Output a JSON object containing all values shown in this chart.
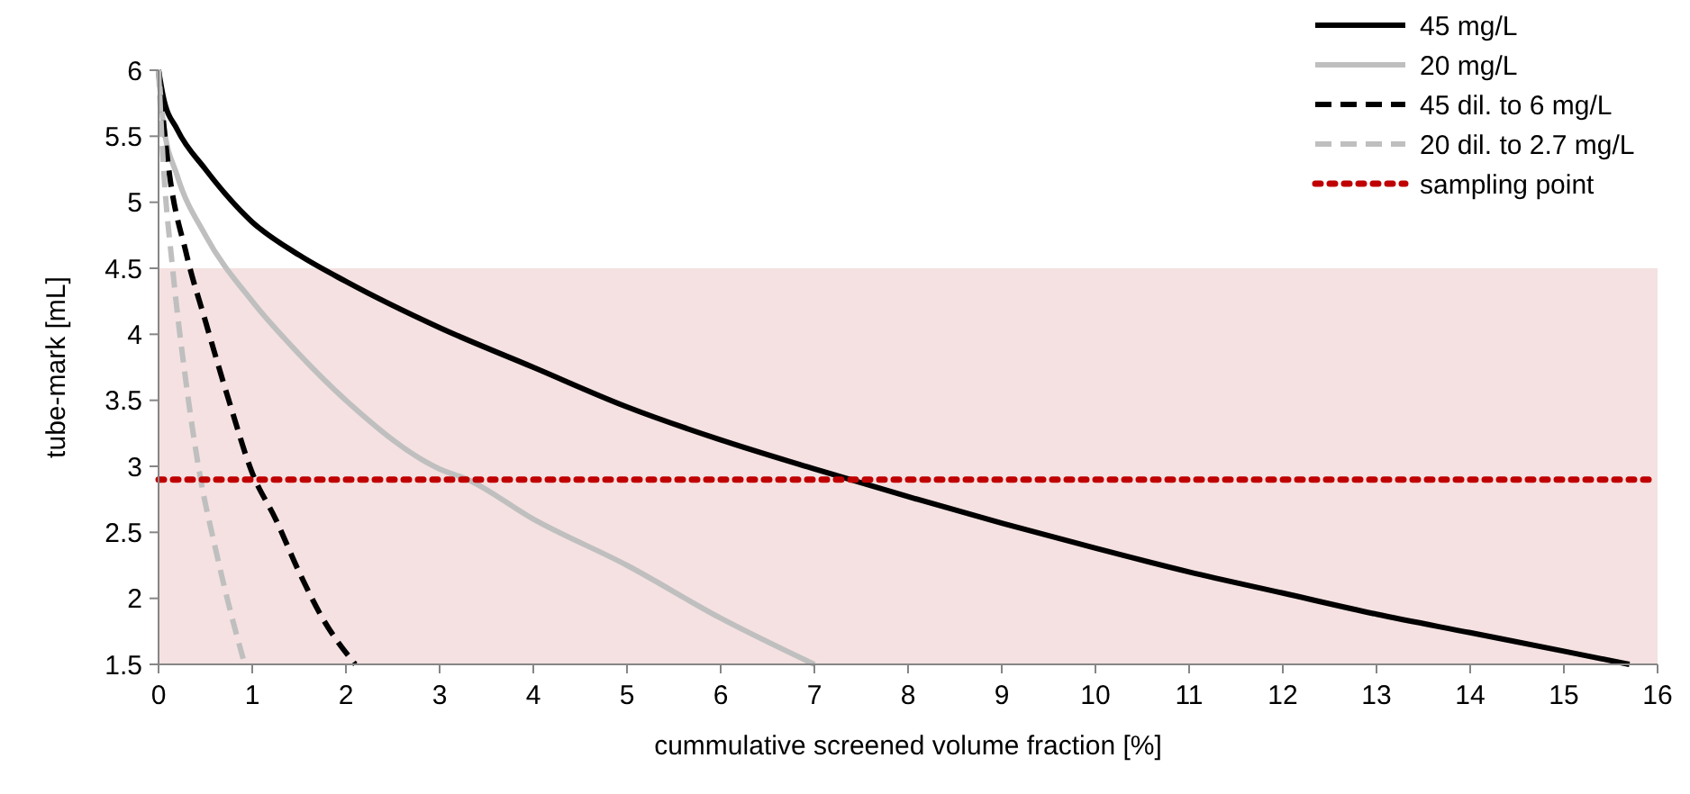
{
  "chart_data": {
    "type": "line",
    "xlabel": "cummulative screened volume fraction [%]",
    "ylabel": "tube-mark [mL]",
    "xlim": [
      0,
      16
    ],
    "xticks": [
      0,
      1,
      2,
      3,
      4,
      5,
      6,
      7,
      8,
      9,
      10,
      11,
      12,
      13,
      14,
      15,
      16
    ],
    "ylim": [
      1.5,
      6
    ],
    "yticks": [
      1.5,
      2,
      2.5,
      3,
      3.5,
      4,
      4.5,
      5,
      5.5,
      6
    ],
    "grid": false,
    "legend": "top right",
    "bands": [
      {
        "axis": "y",
        "from": 1.5,
        "to": 4.5,
        "color": "#f5e1e1"
      }
    ],
    "series": [
      {
        "name": "45 mg/L",
        "color": "#000000",
        "line_style": "solid",
        "x": [
          0,
          0.05,
          0.2,
          0.5,
          1,
          1.5,
          2,
          3,
          4,
          5,
          6,
          7,
          8,
          9,
          10,
          11,
          12,
          13,
          14,
          15,
          15.7
        ],
        "values": [
          6,
          5.8,
          5.55,
          5.25,
          4.85,
          4.6,
          4.4,
          4.05,
          3.75,
          3.45,
          3.2,
          2.98,
          2.77,
          2.57,
          2.38,
          2.2,
          2.04,
          1.88,
          1.74,
          1.6,
          1.5
        ]
      },
      {
        "name": "20 mg/L",
        "color": "#bfbfbf",
        "line_style": "solid",
        "x": [
          0,
          0.05,
          0.2,
          0.5,
          1,
          1.5,
          2,
          3,
          3.3,
          4,
          5,
          6,
          7
        ],
        "values": [
          6,
          5.6,
          5.2,
          4.75,
          4.25,
          3.85,
          3.5,
          2.98,
          2.9,
          2.6,
          2.25,
          1.85,
          1.5
        ]
      },
      {
        "name": "45 dil. to 6 mg/L",
        "color": "#000000",
        "line_style": "dashed",
        "x": [
          0,
          0.1,
          0.3,
          0.5,
          0.75,
          1,
          1.25,
          1.5,
          1.75,
          2.1
        ],
        "values": [
          6,
          5.3,
          4.6,
          4.1,
          3.5,
          2.95,
          2.6,
          2.2,
          1.85,
          1.5
        ]
      },
      {
        "name": "20 dil. to 2.7 mg/L",
        "color": "#bfbfbf",
        "line_style": "dashed",
        "x": [
          0,
          0.05,
          0.15,
          0.3,
          0.45,
          0.6,
          0.75,
          0.92
        ],
        "values": [
          6,
          5.3,
          4.5,
          3.6,
          2.9,
          2.4,
          1.95,
          1.5
        ]
      },
      {
        "name": "sampling point",
        "color": "#c00000",
        "line_style": "dotted",
        "x": [
          0,
          16
        ],
        "values": [
          2.9,
          2.9
        ]
      }
    ]
  }
}
